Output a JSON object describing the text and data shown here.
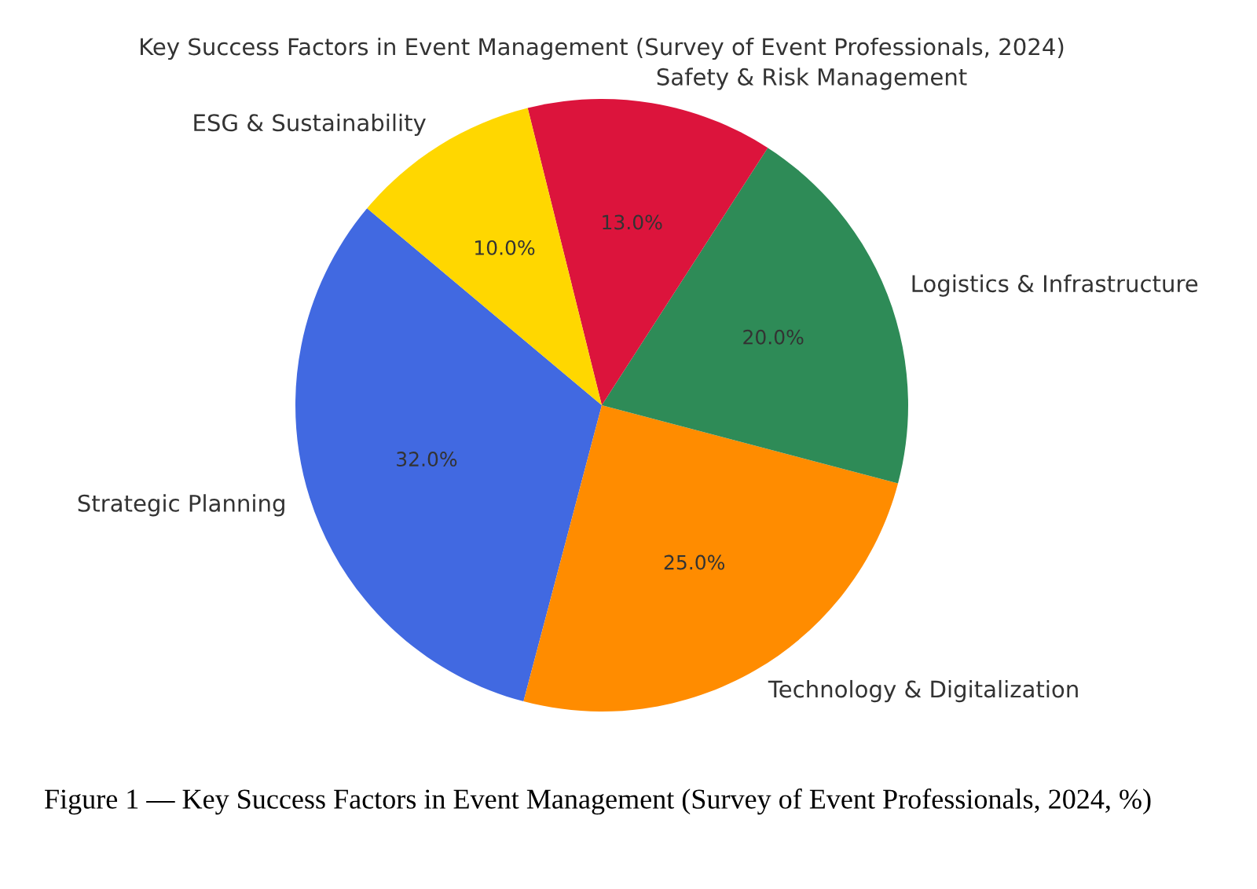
{
  "chart_data": {
    "type": "pie",
    "title": "Key Success Factors in Event Management (Survey of Event Professionals, 2024)",
    "categories": [
      "Strategic Planning",
      "Technology & Digitalization",
      "Logistics & Infrastructure",
      "Safety & Risk Management",
      "ESG & Sustainability"
    ],
    "values": [
      32,
      25,
      20,
      13,
      10
    ],
    "colors": [
      "#4169e1",
      "#ff8c00",
      "#2e8b57",
      "#dc143c",
      "#ffd700"
    ],
    "value_labels": [
      "32.0%",
      "25.0%",
      "20.0%",
      "13.0%",
      "10.0%"
    ],
    "annotations": [
      "Figure 1 — Key Success Factors in Event Management (Survey of Event Professionals, 2024, %)"
    ]
  }
}
